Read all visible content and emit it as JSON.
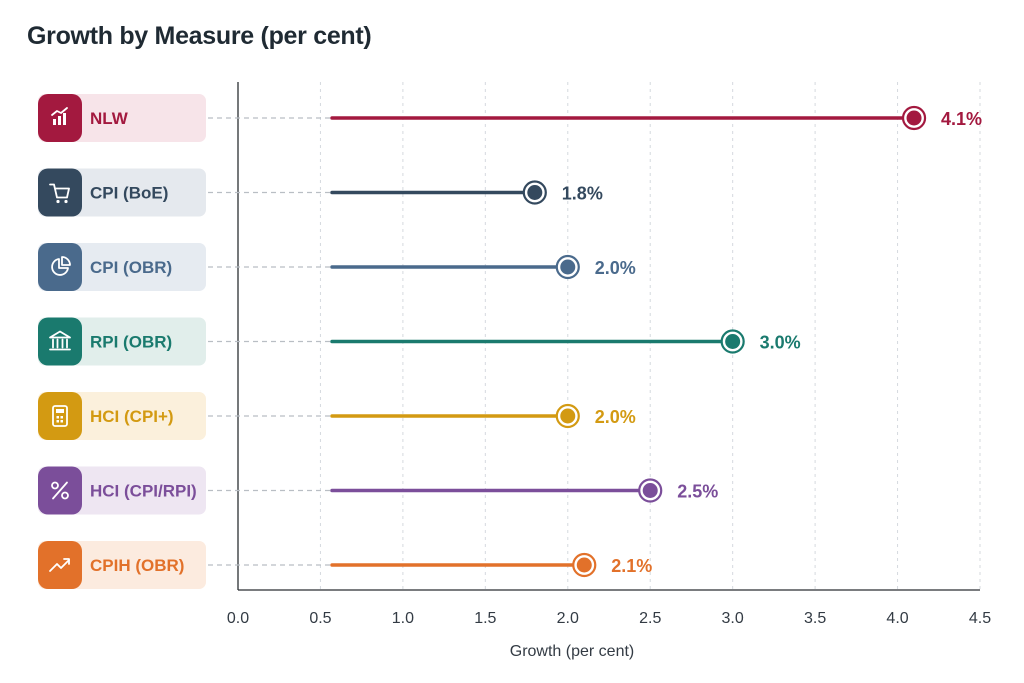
{
  "chart_data": {
    "type": "bar",
    "title": "Growth by Measure (per cent)",
    "xlabel": "Growth (per cent)",
    "ylabel": "",
    "xlim": [
      0,
      4.5
    ],
    "xticks": [
      "0.0",
      "0.5",
      "1.0",
      "1.5",
      "2.0",
      "2.5",
      "3.0",
      "3.5",
      "4.0",
      "4.5"
    ],
    "grid": true,
    "orientation": "horizontal",
    "style": "lollipop",
    "categories": [
      "NLW",
      "CPI (BoE)",
      "CPI (OBR)",
      "RPI (OBR)",
      "HCI (CPI+)",
      "HCI (CPI/RPI)",
      "CPIH (OBR)"
    ],
    "values": [
      4.1,
      1.8,
      2.0,
      3.0,
      2.0,
      2.5,
      2.1
    ],
    "value_labels": [
      "4.1%",
      "1.8%",
      "2.0%",
      "3.0%",
      "2.0%",
      "2.5%",
      "2.1%"
    ],
    "colors": [
      "#a3193f",
      "#34495e",
      "#4a6a8c",
      "#1a7a6e",
      "#d39a12",
      "#7b4e9a",
      "#e2712a"
    ],
    "label_backgrounds": [
      "#f7e4e9",
      "#e5e9ee",
      "#e6ebf1",
      "#e1eeeb",
      "#fbf0dc",
      "#eee6f2",
      "#fcebdf"
    ],
    "icons": [
      "bar-chart-icon",
      "shopping-cart-icon",
      "pie-chart-icon",
      "bank-icon",
      "calculator-icon",
      "percent-icon",
      "trend-up-icon"
    ]
  }
}
